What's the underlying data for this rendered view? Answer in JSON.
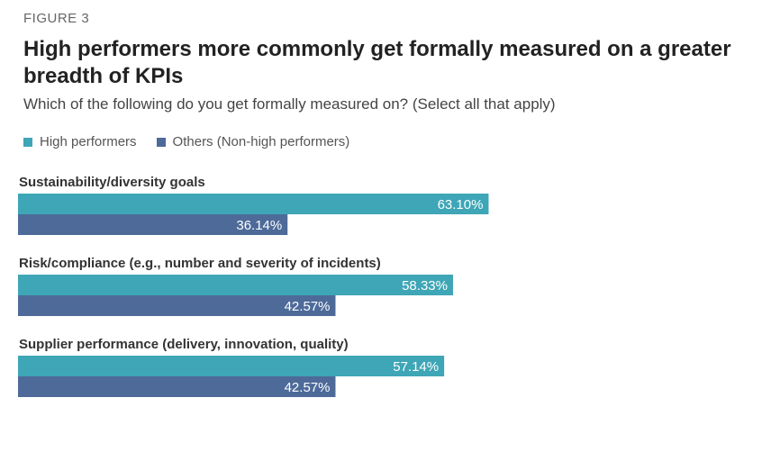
{
  "figure_label": "FIGURE 3",
  "chart_data": {
    "type": "bar",
    "orientation": "horizontal",
    "title": "High performers more commonly get formally measured on a greater breadth of KPIs",
    "subtitle": "Which of the following do you get formally measured on? (Select all that apply)",
    "categories": [
      "Sustainability/diversity goals",
      "Risk/compliance (e.g., number and severity of incidents)",
      "Supplier performance (delivery, innovation, quality)"
    ],
    "series": [
      {
        "name": "High performers",
        "color": "#3ea6b6",
        "values": [
          63.1,
          58.33,
          57.14
        ],
        "labels": [
          "63.10%",
          "58.33%",
          "57.14%"
        ]
      },
      {
        "name": "Others (Non-high performers)",
        "color": "#4d6a99",
        "values": [
          36.14,
          42.57,
          42.57
        ],
        "labels": [
          "36.14%",
          "42.57%",
          "42.57%"
        ]
      }
    ],
    "xlim": [
      0,
      100
    ],
    "legend_position": "top-left",
    "grid": false
  }
}
